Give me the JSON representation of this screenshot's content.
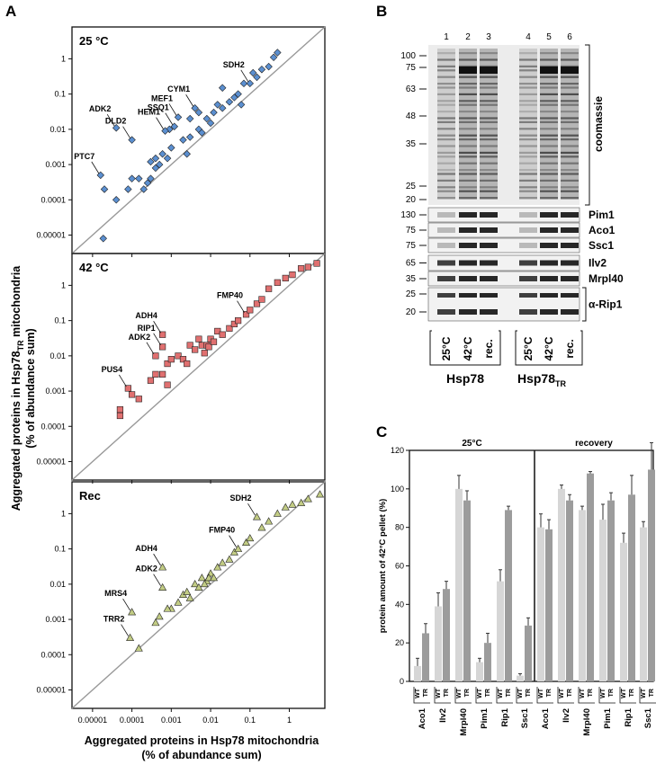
{
  "panel_letters": {
    "a": "A",
    "b": "B",
    "c": "C"
  },
  "scatter_axes": {
    "ylabel_line1": "Aggregated proteins in Hsp78",
    "ylabel_sub": "TR",
    "ylabel_line1b": " mitochondria",
    "ylabel_line2": "(% of abundance sum)",
    "xlabel_line1": "Aggregated proteins in Hsp78 mitochondria",
    "xlabel_line2": "(% of abundance sum)",
    "y_ticks": [
      "1",
      "0.1",
      "0.01",
      "0.001",
      "0.0001",
      "0.00001"
    ],
    "x_ticks": [
      "0.00001",
      "0.0001",
      "0.001",
      "0.01",
      "0.1",
      "1"
    ]
  },
  "colors": {
    "blue": "#5b8fd0",
    "red": "#e07070",
    "green": "#c2cc84"
  },
  "chart_data": [
    {
      "type": "scatter",
      "title": "25 °C",
      "scale": "log",
      "xlim": [
        3e-06,
        8
      ],
      "ylim": [
        3e-06,
        8
      ],
      "labels": [
        {
          "text": "SDH2",
          "x": 0.1,
          "y": 0.2
        },
        {
          "text": "CYM1",
          "x": 0.004,
          "y": 0.04
        },
        {
          "text": "MEF1",
          "x": 0.0015,
          "y": 0.022
        },
        {
          "text": "SSQ1",
          "x": 0.0012,
          "y": 0.012
        },
        {
          "text": "HEM1",
          "x": 0.0007,
          "y": 0.009
        },
        {
          "text": "ADK2",
          "x": 4e-05,
          "y": 0.011
        },
        {
          "text": "DLD2",
          "x": 0.0001,
          "y": 0.005
        },
        {
          "text": "PTC7",
          "x": 1.6e-05,
          "y": 0.0005
        }
      ],
      "points": [
        [
          1.6e-05,
          0.0005
        ],
        [
          4e-05,
          0.011
        ],
        [
          0.0001,
          0.005
        ],
        [
          2e-05,
          0.0002
        ],
        [
          1.87e-05,
          8e-06
        ],
        [
          4e-05,
          0.0001
        ],
        [
          8e-05,
          0.0002
        ],
        [
          0.0001,
          0.0004
        ],
        [
          0.00015,
          0.0004
        ],
        [
          0.0002,
          0.0002
        ],
        [
          0.00025,
          0.0003
        ],
        [
          0.0003,
          0.0004
        ],
        [
          0.0003,
          0.0012
        ],
        [
          0.0004,
          0.0008
        ],
        [
          0.0005,
          0.001
        ],
        [
          0.0006,
          0.002
        ],
        [
          0.0008,
          0.0015
        ],
        [
          0.001,
          0.003
        ],
        [
          0.0012,
          0.012
        ],
        [
          0.0015,
          0.022
        ],
        [
          0.002,
          0.005
        ],
        [
          0.003,
          0.006
        ],
        [
          0.004,
          0.04
        ],
        [
          0.005,
          0.01
        ],
        [
          0.006,
          0.008
        ],
        [
          0.008,
          0.02
        ],
        [
          0.01,
          0.015
        ],
        [
          0.012,
          0.03
        ],
        [
          0.015,
          0.05
        ],
        [
          0.02,
          0.04
        ],
        [
          0.03,
          0.06
        ],
        [
          0.04,
          0.08
        ],
        [
          0.05,
          0.1
        ],
        [
          0.07,
          0.2
        ],
        [
          0.1,
          0.2
        ],
        [
          0.12,
          0.4
        ],
        [
          0.15,
          0.3
        ],
        [
          0.2,
          0.5
        ],
        [
          0.3,
          0.6
        ],
        [
          0.4,
          1.1
        ],
        [
          0.5,
          1.5
        ],
        [
          0.003,
          0.02
        ],
        [
          0.005,
          0.03
        ],
        [
          0.0009,
          0.01
        ],
        [
          0.0007,
          0.009
        ],
        [
          0.02,
          0.15
        ],
        [
          0.06,
          0.05
        ],
        [
          0.0025,
          0.002
        ],
        [
          0.0004,
          0.0015
        ]
      ]
    },
    {
      "type": "scatter",
      "title": "42 °C",
      "scale": "log",
      "xlim": [
        3e-06,
        8
      ],
      "ylim": [
        3e-06,
        8
      ],
      "labels": [
        {
          "text": "FMP40",
          "x": 0.08,
          "y": 0.15
        },
        {
          "text": "ADH4",
          "x": 0.0006,
          "y": 0.04
        },
        {
          "text": "RIP1",
          "x": 0.0006,
          "y": 0.018
        },
        {
          "text": "ADK2",
          "x": 0.0004,
          "y": 0.01
        },
        {
          "text": "PUS4",
          "x": 8e-05,
          "y": 0.0012
        }
      ],
      "points": [
        [
          8e-05,
          0.0012
        ],
        [
          0.0004,
          0.01
        ],
        [
          0.0006,
          0.018
        ],
        [
          0.0006,
          0.04
        ],
        [
          5e-05,
          0.0003
        ],
        [
          5e-05,
          0.0002
        ],
        [
          0.0001,
          0.0008
        ],
        [
          0.00015,
          0.0006
        ],
        [
          0.0003,
          0.002
        ],
        [
          0.0004,
          0.003
        ],
        [
          0.0006,
          0.003
        ],
        [
          0.0008,
          0.006
        ],
        [
          0.001,
          0.008
        ],
        [
          0.0015,
          0.01
        ],
        [
          0.002,
          0.008
        ],
        [
          0.003,
          0.02
        ],
        [
          0.004,
          0.015
        ],
        [
          0.005,
          0.03
        ],
        [
          0.006,
          0.02
        ],
        [
          0.008,
          0.02
        ],
        [
          0.01,
          0.03
        ],
        [
          0.015,
          0.05
        ],
        [
          0.02,
          0.04
        ],
        [
          0.03,
          0.06
        ],
        [
          0.04,
          0.08
        ],
        [
          0.05,
          0.1
        ],
        [
          0.08,
          0.15
        ],
        [
          0.1,
          0.2
        ],
        [
          0.15,
          0.3
        ],
        [
          0.2,
          0.4
        ],
        [
          0.3,
          0.8
        ],
        [
          0.5,
          1.2
        ],
        [
          0.8,
          1.6
        ],
        [
          1.2,
          2
        ],
        [
          2,
          3
        ],
        [
          3,
          3.3
        ],
        [
          5,
          4.2
        ],
        [
          0.007,
          0.012
        ],
        [
          0.009,
          0.018
        ],
        [
          0.012,
          0.025
        ],
        [
          0.0025,
          0.006
        ],
        [
          0.0008,
          0.0015
        ]
      ]
    },
    {
      "type": "scatter",
      "title": "Rec",
      "scale": "log",
      "xlim": [
        3e-06,
        8
      ],
      "ylim": [
        3e-06,
        8
      ],
      "labels": [
        {
          "text": "SDH2",
          "x": 0.15,
          "y": 0.8
        },
        {
          "text": "FMP40",
          "x": 0.05,
          "y": 0.1
        },
        {
          "text": "ADH4",
          "x": 0.0006,
          "y": 0.03
        },
        {
          "text": "ADK2",
          "x": 0.0006,
          "y": 0.008
        },
        {
          "text": "MRS4",
          "x": 0.0001,
          "y": 0.0016
        },
        {
          "text": "TRR2",
          "x": 9e-05,
          "y": 0.0003
        }
      ],
      "points": [
        [
          9e-05,
          0.0003
        ],
        [
          0.0001,
          0.0016
        ],
        [
          0.0006,
          0.008
        ],
        [
          0.0006,
          0.03
        ],
        [
          0.00015,
          0.00015
        ],
        [
          0.0004,
          0.0008
        ],
        [
          0.0005,
          0.0012
        ],
        [
          0.001,
          0.002
        ],
        [
          0.0015,
          0.003
        ],
        [
          0.002,
          0.005
        ],
        [
          0.003,
          0.004
        ],
        [
          0.004,
          0.01
        ],
        [
          0.005,
          0.008
        ],
        [
          0.006,
          0.015
        ],
        [
          0.008,
          0.012
        ],
        [
          0.01,
          0.02
        ],
        [
          0.015,
          0.03
        ],
        [
          0.02,
          0.04
        ],
        [
          0.03,
          0.05
        ],
        [
          0.04,
          0.08
        ],
        [
          0.05,
          0.1
        ],
        [
          0.08,
          0.15
        ],
        [
          0.1,
          0.2
        ],
        [
          0.15,
          0.8
        ],
        [
          0.2,
          0.4
        ],
        [
          0.3,
          0.6
        ],
        [
          0.5,
          1
        ],
        [
          0.8,
          1.5
        ],
        [
          1.2,
          1.8
        ],
        [
          2,
          2
        ],
        [
          3,
          2.6
        ],
        [
          6,
          3.5
        ],
        [
          0.007,
          0.01
        ],
        [
          0.009,
          0.015
        ],
        [
          0.012,
          0.015
        ],
        [
          0.0025,
          0.006
        ],
        [
          0.0008,
          0.002
        ]
      ]
    },
    {
      "type": "bar",
      "panel": "C",
      "ylabel": "protein amount of 42°C pellet (%)",
      "ylim": [
        0,
        120
      ],
      "y_ticks": [
        0,
        20,
        40,
        60,
        80,
        100,
        120
      ],
      "groups": [
        "25°C",
        "recovery"
      ],
      "pair_labels": [
        "WT",
        "TR"
      ],
      "series_colors": [
        "#d6d6d6",
        "#9c9c9c"
      ],
      "categories": [
        {
          "group": "25°C",
          "name": "Aco1",
          "wt": 8,
          "tr": 25,
          "wt_err": 4,
          "tr_err": 5
        },
        {
          "group": "25°C",
          "name": "Ilv2",
          "wt": 39,
          "tr": 48,
          "wt_err": 7,
          "tr_err": 4
        },
        {
          "group": "25°C",
          "name": "Mrpl40",
          "wt": 100,
          "tr": 94,
          "wt_err": 7,
          "tr_err": 5
        },
        {
          "group": "25°C",
          "name": "Pim1",
          "wt": 10,
          "tr": 20,
          "wt_err": 2,
          "tr_err": 5
        },
        {
          "group": "25°C",
          "name": "Rip1",
          "wt": 52,
          "tr": 89,
          "wt_err": 6,
          "tr_err": 2
        },
        {
          "group": "25°C",
          "name": "Ssc1",
          "wt": 3,
          "tr": 29,
          "wt_err": 1,
          "tr_err": 4
        },
        {
          "group": "recovery",
          "name": "Aco1",
          "wt": 80,
          "tr": 79,
          "wt_err": 7,
          "tr_err": 5
        },
        {
          "group": "recovery",
          "name": "Ilv2",
          "wt": 100,
          "tr": 94,
          "wt_err": 2,
          "tr_err": 3
        },
        {
          "group": "recovery",
          "name": "Mrpl40",
          "wt": 89,
          "tr": 108,
          "wt_err": 2,
          "tr_err": 1
        },
        {
          "group": "recovery",
          "name": "Pim1",
          "wt": 84,
          "tr": 94,
          "wt_err": 8,
          "tr_err": 4
        },
        {
          "group": "recovery",
          "name": "Rip1",
          "wt": 72,
          "tr": 97,
          "wt_err": 5,
          "tr_err": 10
        },
        {
          "group": "recovery",
          "name": "Ssc1",
          "wt": 80,
          "tr": 110,
          "wt_err": 3,
          "tr_err": 14
        }
      ]
    }
  ],
  "gel": {
    "lane_numbers": [
      "1",
      "2",
      "3",
      "4",
      "5",
      "6"
    ],
    "mw_top": [
      "100",
      "75",
      "63",
      "48",
      "35",
      "25",
      "20"
    ],
    "coomassie_label": "coomassie",
    "strips": [
      {
        "mw": [
          "130"
        ],
        "label": "Pim1"
      },
      {
        "mw": [
          "75"
        ],
        "label": "Aco1"
      },
      {
        "mw": [
          "75"
        ],
        "label": "Ssc1"
      },
      {
        "mw": [
          "65"
        ],
        "label": "Ilv2"
      },
      {
        "mw": [
          "35"
        ],
        "label": "Mrpl40"
      },
      {
        "mw": [
          "25",
          "20"
        ],
        "label": "α-Rip1"
      }
    ],
    "condition_labels": [
      "25°C",
      "42°C",
      "rec.",
      "25°C",
      "42°C",
      "rec."
    ],
    "strain1": "Hsp78",
    "strain2": "Hsp78",
    "strain2_sub": "TR"
  }
}
